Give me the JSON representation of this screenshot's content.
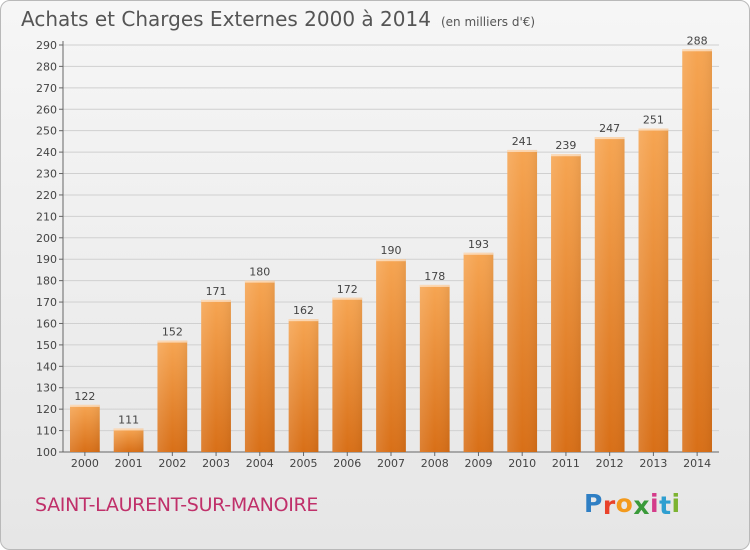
{
  "title": "Achats et Charges Externes 2000 à 2014",
  "unit": "(en milliers d'€)",
  "commune": "SAINT-LAURENT-SUR-MANOIRE",
  "logo": {
    "letters": [
      "P",
      "r",
      "o",
      "x",
      "i",
      "t",
      "i"
    ],
    "colors": [
      "#2f7fc4",
      "#e9422a",
      "#f39a1d",
      "#3a9a3a",
      "#d43c8a",
      "#2f9fd0",
      "#7cb331"
    ]
  },
  "chart_data": {
    "type": "bar",
    "categories": [
      "2000",
      "2001",
      "2002",
      "2003",
      "2004",
      "2005",
      "2006",
      "2007",
      "2008",
      "2009",
      "2010",
      "2011",
      "2012",
      "2013",
      "2014"
    ],
    "values": [
      122,
      111,
      152,
      171,
      180,
      162,
      172,
      190,
      178,
      193,
      241,
      239,
      247,
      251,
      288
    ],
    "ylim": [
      100,
      290
    ],
    "yticks": [
      100,
      110,
      120,
      130,
      140,
      150,
      160,
      170,
      180,
      190,
      200,
      210,
      220,
      230,
      240,
      250,
      260,
      270,
      280,
      290
    ],
    "grid": true,
    "bar_color": "#f19a3e"
  }
}
